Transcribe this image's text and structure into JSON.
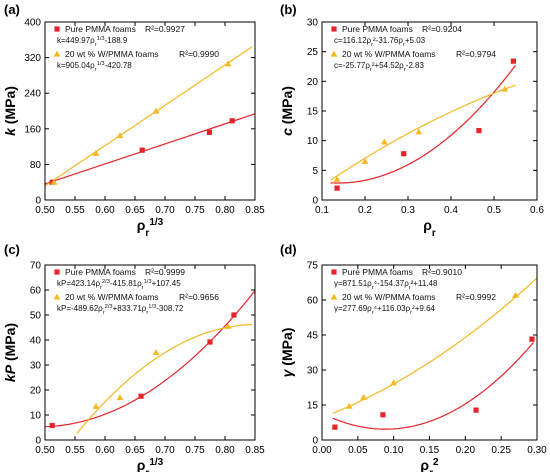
{
  "chart_data": [
    {
      "type": "scatter",
      "panel_label": "(a)",
      "xlabel": "ρ",
      "xlabel_sub": "r",
      "xlabel_sup": "1/3",
      "ylabel": "k (MPa)",
      "xlim": [
        0.5,
        0.85
      ],
      "ylim": [
        0,
        400
      ],
      "xticks": [
        0.5,
        0.55,
        0.6,
        0.65,
        0.7,
        0.75,
        0.8,
        0.85
      ],
      "yticks": [
        0,
        80,
        160,
        240,
        320,
        400
      ],
      "xtick_labels": [
        "0.50",
        "0.55",
        "0.60",
        "0.65",
        "0.70",
        "0.75",
        "0.80",
        "0.85"
      ],
      "ytick_labels": [
        "0",
        "80",
        "160",
        "240",
        "320",
        "400"
      ],
      "series": [
        {
          "name": "Pure PMMA foams",
          "marker": "square",
          "color": "#e8232a",
          "r2": "R²=0.9927",
          "equation": "k=449.97ρr^1/3-188.9",
          "points": [
            [
              0.512,
              40
            ],
            [
              0.662,
              112
            ],
            [
              0.774,
              152
            ],
            [
              0.812,
              178
            ]
          ],
          "fit": {
            "kind": "poly",
            "coef": [
              -188.9,
              449.97
            ],
            "xrange": [
              0.5,
              0.85
            ]
          }
        },
        {
          "name": "20 wt % W/PMMA foams",
          "marker": "triangle",
          "color": "#f4b822",
          "r2": "R²=0.9990",
          "equation": "k=905.04ρr^1/3-420.78",
          "points": [
            [
              0.515,
              40
            ],
            [
              0.585,
              105
            ],
            [
              0.625,
              145
            ],
            [
              0.685,
              200
            ],
            [
              0.805,
              306
            ]
          ],
          "fit": {
            "kind": "poly",
            "coef": [
              -420.78,
              905.04
            ],
            "xrange": [
              0.5,
              0.845
            ]
          }
        }
      ]
    },
    {
      "type": "scatter",
      "panel_label": "(b)",
      "xlabel": "ρ",
      "xlabel_sub": "r",
      "xlabel_sup": "",
      "ylabel": "c (MPa)",
      "xlim": [
        0.1,
        0.6
      ],
      "ylim": [
        0,
        30
      ],
      "xticks": [
        0.1,
        0.2,
        0.3,
        0.4,
        0.5,
        0.6
      ],
      "yticks": [
        0,
        5,
        10,
        15,
        20,
        25,
        30
      ],
      "xtick_labels": [
        "0.1",
        "0.2",
        "0.3",
        "0.4",
        "0.5",
        "0.6"
      ],
      "ytick_labels": [
        "0",
        "5",
        "10",
        "15",
        "20",
        "25",
        "30"
      ],
      "series": [
        {
          "name": "Pure PMMA foams",
          "marker": "square",
          "color": "#e8232a",
          "r2": "R²=0.9204",
          "equation": "c=116.12ρr²-31.76ρr+5.03",
          "points": [
            [
              0.135,
              2.0
            ],
            [
              0.29,
              7.8
            ],
            [
              0.465,
              11.7
            ],
            [
              0.545,
              23.4
            ]
          ],
          "fit": {
            "kind": "poly",
            "coef": [
              5.03,
              -31.76,
              116.12
            ],
            "xrange": [
              0.12,
              0.55
            ]
          }
        },
        {
          "name": "20 wt % W/PMMA foams",
          "marker": "triangle",
          "color": "#f4b822",
          "r2": "R²=0.9794",
          "equation": "c=-25.77ρr²+54.52ρr-2.83",
          "points": [
            [
              0.135,
              3.5
            ],
            [
              0.2,
              6.5
            ],
            [
              0.245,
              9.8
            ],
            [
              0.325,
              11.5
            ],
            [
              0.525,
              18.7
            ]
          ],
          "fit": {
            "kind": "poly",
            "coef": [
              -2.83,
              54.52,
              -25.77
            ],
            "xrange": [
              0.12,
              0.55
            ]
          }
        }
      ]
    },
    {
      "type": "scatter",
      "panel_label": "(c)",
      "xlabel": "ρ",
      "xlabel_sub": "r",
      "xlabel_sup": "1/3",
      "ylabel": "kP (MPa)",
      "xlim": [
        0.5,
        0.85
      ],
      "ylim": [
        0,
        70
      ],
      "xticks": [
        0.5,
        0.55,
        0.6,
        0.65,
        0.7,
        0.75,
        0.8,
        0.85
      ],
      "yticks": [
        0,
        10,
        20,
        30,
        40,
        50,
        60,
        70
      ],
      "xtick_labels": [
        "0.50",
        "0.55",
        "0.60",
        "0.65",
        "0.70",
        "0.75",
        "0.80",
        "0.85"
      ],
      "ytick_labels": [
        "0",
        "10",
        "20",
        "30",
        "40",
        "50",
        "60",
        "70"
      ],
      "series": [
        {
          "name": "Pure PMMA foams",
          "marker": "square",
          "color": "#e8232a",
          "r2": "R²=0.9999",
          "equation": "kP=423.14ρr^2/3-415.81ρr^1/3+107.45",
          "points": [
            [
              0.512,
              5.8
            ],
            [
              0.66,
              17.5
            ],
            [
              0.775,
              39.2
            ],
            [
              0.815,
              50.0
            ]
          ],
          "fit": {
            "kind": "poly",
            "coef": [
              107.45,
              -415.81,
              423.14
            ],
            "xrange": [
              0.5,
              0.85
            ]
          }
        },
        {
          "name": "20 wt % W/PMMA foams",
          "marker": "triangle",
          "color": "#f4b822",
          "r2": "R²=0.9656",
          "equation": "kP=-489.62ρr^2/3+833.71ρr^1/3-308.72",
          "points": [
            [
              0.585,
              13.5
            ],
            [
              0.625,
              17.0
            ],
            [
              0.685,
              35.0
            ],
            [
              0.805,
              45.5
            ]
          ],
          "fit": {
            "kind": "poly",
            "coef": [
              -308.72,
              833.71,
              -489.62
            ],
            "xrange": [
              0.553,
              0.845
            ]
          }
        }
      ]
    },
    {
      "type": "scatter",
      "panel_label": "(d)",
      "xlabel": "ρ",
      "xlabel_sub": "r",
      "xlabel_sup": "2",
      "ylabel": "γ (MPa)",
      "xlim": [
        0.0,
        0.3
      ],
      "ylim": [
        0,
        75
      ],
      "xticks": [
        0.0,
        0.05,
        0.1,
        0.15,
        0.2,
        0.25,
        0.3
      ],
      "yticks": [
        0,
        15,
        30,
        45,
        60,
        75
      ],
      "xtick_labels": [
        "0.00",
        "0.05",
        "0.10",
        "0.15",
        "0.20",
        "0.25",
        "0.30"
      ],
      "ytick_labels": [
        "0",
        "15",
        "30",
        "45",
        "60",
        "75"
      ],
      "series": [
        {
          "name": "Pure PMMA foams",
          "marker": "square",
          "color": "#e8232a",
          "r2": "R²=0.9010",
          "equation": "γ=871.51ρr⁴-154.37ρr²+11.48",
          "points": [
            [
              0.018,
              5.5
            ],
            [
              0.085,
              10.8
            ],
            [
              0.215,
              12.8
            ],
            [
              0.293,
              43.2
            ]
          ],
          "fit": {
            "kind": "quad",
            "coef": [
              11.48,
              -154.37,
              871.51
            ],
            "xrange": [
              0.015,
              0.295
            ]
          }
        },
        {
          "name": "20 wt % W/PMMA foams",
          "marker": "triangle",
          "color": "#f4b822",
          "r2": "R²=0.9992",
          "equation": "γ=277.69ρr⁴+116.03ρr²+9.64",
          "points": [
            [
              0.038,
              14.5
            ],
            [
              0.058,
              18.3
            ],
            [
              0.1,
              24.5
            ],
            [
              0.27,
              62.0
            ]
          ],
          "fit": {
            "kind": "quad",
            "coef": [
              9.64,
              116.03,
              277.69
            ],
            "xrange": [
              0.015,
              0.3
            ]
          }
        }
      ]
    }
  ]
}
